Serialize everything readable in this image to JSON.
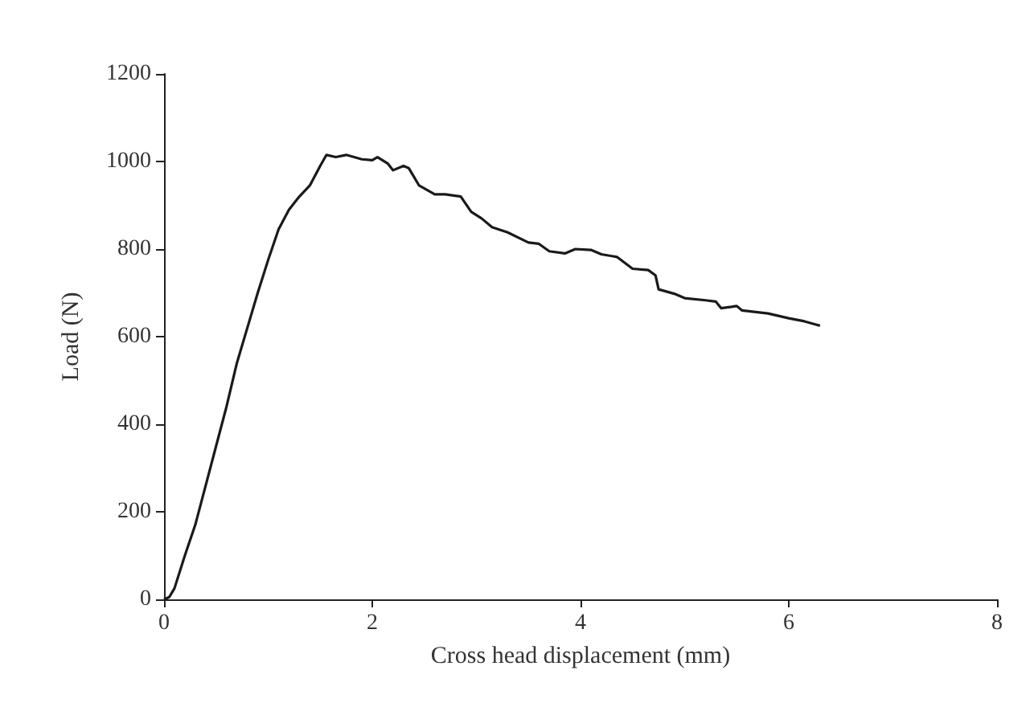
{
  "chart_data": {
    "type": "line",
    "xlabel": "Cross head displacement (mm)",
    "ylabel": "Load (N)",
    "x": [
      0,
      0.05,
      0.1,
      0.2,
      0.3,
      0.4,
      0.5,
      0.6,
      0.7,
      0.8,
      0.9,
      1.0,
      1.1,
      1.2,
      1.3,
      1.4,
      1.5,
      1.56,
      1.65,
      1.75,
      1.9,
      2.0,
      2.05,
      2.15,
      2.2,
      2.3,
      2.35,
      2.45,
      2.6,
      2.7,
      2.85,
      2.95,
      3.05,
      3.15,
      3.3,
      3.5,
      3.6,
      3.7,
      3.85,
      3.95,
      4.1,
      4.2,
      4.35,
      4.5,
      4.65,
      4.72,
      4.75,
      4.9,
      5.0,
      5.2,
      5.3,
      5.35,
      5.45,
      5.5,
      5.55,
      5.8,
      6.0,
      6.15,
      6.3
    ],
    "series": [
      {
        "color": "#1a1a1a",
        "values": [
          0,
          5,
          25,
          100,
          170,
          260,
          350,
          440,
          540,
          620,
          700,
          775,
          845,
          890,
          920,
          945,
          990,
          1015,
          1010,
          1015,
          1005,
          1003,
          1010,
          995,
          980,
          990,
          985,
          945,
          925,
          925,
          920,
          885,
          870,
          850,
          838,
          815,
          812,
          795,
          790,
          800,
          798,
          788,
          782,
          755,
          752,
          740,
          708,
          698,
          688,
          683,
          680,
          665,
          668,
          670,
          660,
          653,
          642,
          635,
          625
        ]
      }
    ],
    "xlim": [
      0,
      8
    ],
    "xticks": [
      0,
      2,
      4,
      6,
      8
    ],
    "ylim": [
      0,
      1200
    ],
    "yticks": [
      0,
      200,
      400,
      600,
      800,
      1000,
      1200
    ],
    "grid": false,
    "marker": "none",
    "line_style": "solid"
  }
}
